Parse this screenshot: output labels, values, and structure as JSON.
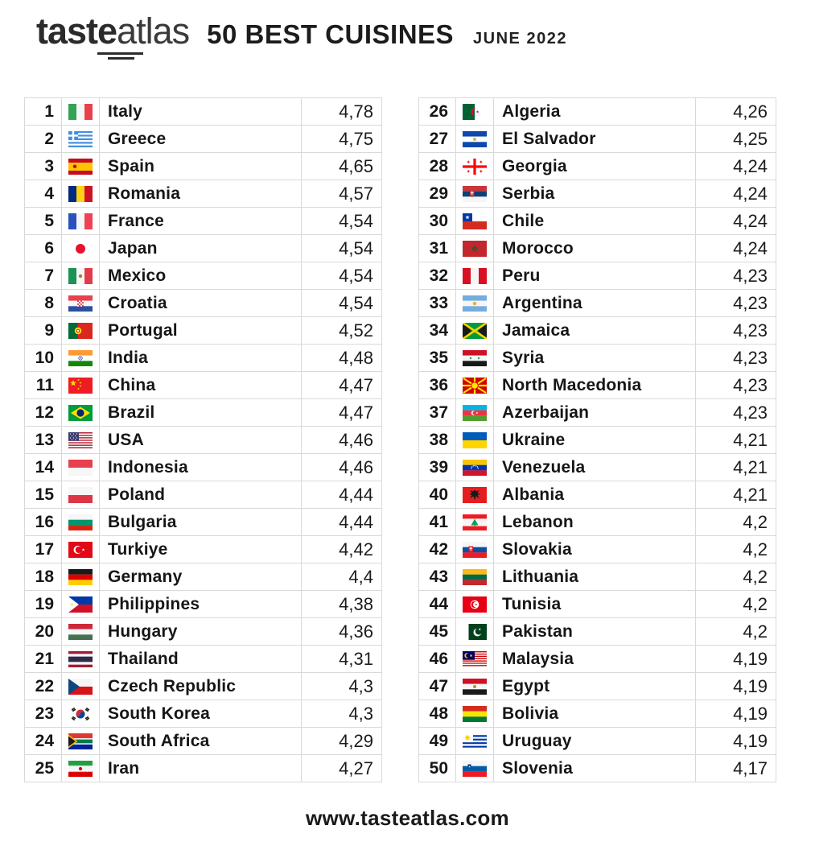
{
  "header": {
    "logo_bold": "taste",
    "logo_light": "atlas",
    "title": "50 BEST CUISINES",
    "subtitle": "JUNE 2022"
  },
  "footer": {
    "website": "www.tasteatlas.com"
  },
  "chart_data": {
    "type": "table",
    "title": "50 BEST CUISINES",
    "subtitle": "JUNE 2022",
    "columns": [
      "rank",
      "flag",
      "country",
      "score"
    ],
    "layout": "two columns of 25 rows, scores use comma decimal separator",
    "rows": [
      {
        "rank": 1,
        "country": "Italy",
        "score": "4,78",
        "value": 4.78,
        "flag": "it"
      },
      {
        "rank": 2,
        "country": "Greece",
        "score": "4,75",
        "value": 4.75,
        "flag": "gr"
      },
      {
        "rank": 3,
        "country": "Spain",
        "score": "4,65",
        "value": 4.65,
        "flag": "es"
      },
      {
        "rank": 4,
        "country": "Romania",
        "score": "4,57",
        "value": 4.57,
        "flag": "ro"
      },
      {
        "rank": 5,
        "country": "France",
        "score": "4,54",
        "value": 4.54,
        "flag": "fr"
      },
      {
        "rank": 6,
        "country": "Japan",
        "score": "4,54",
        "value": 4.54,
        "flag": "jp"
      },
      {
        "rank": 7,
        "country": "Mexico",
        "score": "4,54",
        "value": 4.54,
        "flag": "mx"
      },
      {
        "rank": 8,
        "country": "Croatia",
        "score": "4,54",
        "value": 4.54,
        "flag": "hr"
      },
      {
        "rank": 9,
        "country": "Portugal",
        "score": "4,52",
        "value": 4.52,
        "flag": "pt"
      },
      {
        "rank": 10,
        "country": "India",
        "score": "4,48",
        "value": 4.48,
        "flag": "in"
      },
      {
        "rank": 11,
        "country": "China",
        "score": "4,47",
        "value": 4.47,
        "flag": "cn"
      },
      {
        "rank": 12,
        "country": "Brazil",
        "score": "4,47",
        "value": 4.47,
        "flag": "br"
      },
      {
        "rank": 13,
        "country": "USA",
        "score": "4,46",
        "value": 4.46,
        "flag": "us"
      },
      {
        "rank": 14,
        "country": "Indonesia",
        "score": "4,46",
        "value": 4.46,
        "flag": "id"
      },
      {
        "rank": 15,
        "country": "Poland",
        "score": "4,44",
        "value": 4.44,
        "flag": "pl"
      },
      {
        "rank": 16,
        "country": "Bulgaria",
        "score": "4,44",
        "value": 4.44,
        "flag": "bg"
      },
      {
        "rank": 17,
        "country": "Turkiye",
        "score": "4,42",
        "value": 4.42,
        "flag": "tr"
      },
      {
        "rank": 18,
        "country": "Germany",
        "score": "4,4",
        "value": 4.4,
        "flag": "de"
      },
      {
        "rank": 19,
        "country": "Philippines",
        "score": "4,38",
        "value": 4.38,
        "flag": "ph"
      },
      {
        "rank": 20,
        "country": "Hungary",
        "score": "4,36",
        "value": 4.36,
        "flag": "hu"
      },
      {
        "rank": 21,
        "country": "Thailand",
        "score": "4,31",
        "value": 4.31,
        "flag": "th"
      },
      {
        "rank": 22,
        "country": "Czech Republic",
        "score": "4,3",
        "value": 4.3,
        "flag": "cz"
      },
      {
        "rank": 23,
        "country": "South Korea",
        "score": "4,3",
        "value": 4.3,
        "flag": "kr"
      },
      {
        "rank": 24,
        "country": "South Africa",
        "score": "4,29",
        "value": 4.29,
        "flag": "za"
      },
      {
        "rank": 25,
        "country": "Iran",
        "score": "4,27",
        "value": 4.27,
        "flag": "ir"
      },
      {
        "rank": 26,
        "country": "Algeria",
        "score": "4,26",
        "value": 4.26,
        "flag": "dz"
      },
      {
        "rank": 27,
        "country": "El Salvador",
        "score": "4,25",
        "value": 4.25,
        "flag": "sv"
      },
      {
        "rank": 28,
        "country": "Georgia",
        "score": "4,24",
        "value": 4.24,
        "flag": "ge"
      },
      {
        "rank": 29,
        "country": "Serbia",
        "score": "4,24",
        "value": 4.24,
        "flag": "rs"
      },
      {
        "rank": 30,
        "country": "Chile",
        "score": "4,24",
        "value": 4.24,
        "flag": "cl"
      },
      {
        "rank": 31,
        "country": "Morocco",
        "score": "4,24",
        "value": 4.24,
        "flag": "ma"
      },
      {
        "rank": 32,
        "country": "Peru",
        "score": "4,23",
        "value": 4.23,
        "flag": "pe"
      },
      {
        "rank": 33,
        "country": "Argentina",
        "score": "4,23",
        "value": 4.23,
        "flag": "ar"
      },
      {
        "rank": 34,
        "country": "Jamaica",
        "score": "4,23",
        "value": 4.23,
        "flag": "jm"
      },
      {
        "rank": 35,
        "country": "Syria",
        "score": "4,23",
        "value": 4.23,
        "flag": "sy"
      },
      {
        "rank": 36,
        "country": "North Macedonia",
        "score": "4,23",
        "value": 4.23,
        "flag": "mk"
      },
      {
        "rank": 37,
        "country": "Azerbaijan",
        "score": "4,23",
        "value": 4.23,
        "flag": "az"
      },
      {
        "rank": 38,
        "country": "Ukraine",
        "score": "4,21",
        "value": 4.21,
        "flag": "ua"
      },
      {
        "rank": 39,
        "country": "Venezuela",
        "score": "4,21",
        "value": 4.21,
        "flag": "ve"
      },
      {
        "rank": 40,
        "country": "Albania",
        "score": "4,21",
        "value": 4.21,
        "flag": "al"
      },
      {
        "rank": 41,
        "country": "Lebanon",
        "score": "4,2",
        "value": 4.2,
        "flag": "lb"
      },
      {
        "rank": 42,
        "country": "Slovakia",
        "score": "4,2",
        "value": 4.2,
        "flag": "sk"
      },
      {
        "rank": 43,
        "country": "Lithuania",
        "score": "4,2",
        "value": 4.2,
        "flag": "lt"
      },
      {
        "rank": 44,
        "country": "Tunisia",
        "score": "4,2",
        "value": 4.2,
        "flag": "tn"
      },
      {
        "rank": 45,
        "country": "Pakistan",
        "score": "4,2",
        "value": 4.2,
        "flag": "pk"
      },
      {
        "rank": 46,
        "country": "Malaysia",
        "score": "4,19",
        "value": 4.19,
        "flag": "my"
      },
      {
        "rank": 47,
        "country": "Egypt",
        "score": "4,19",
        "value": 4.19,
        "flag": "eg"
      },
      {
        "rank": 48,
        "country": "Bolivia",
        "score": "4,19",
        "value": 4.19,
        "flag": "bo"
      },
      {
        "rank": 49,
        "country": "Uruguay",
        "score": "4,19",
        "value": 4.19,
        "flag": "uy"
      },
      {
        "rank": 50,
        "country": "Slovenia",
        "score": "4,17",
        "value": 4.17,
        "flag": "si"
      }
    ]
  }
}
